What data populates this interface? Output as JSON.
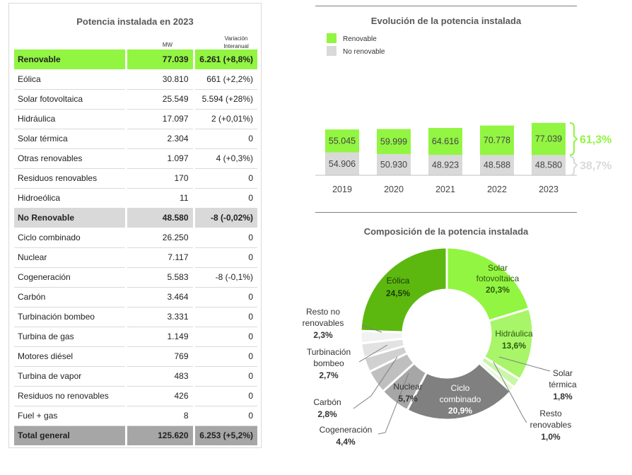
{
  "table": {
    "title": "Potencia instalada en 2023",
    "col_mw": "MW",
    "col_var_line1": "Variación",
    "col_var_line2": "Interanual",
    "rows": [
      {
        "name": "Renovable",
        "mw": "77.039",
        "var": "6.261 (+8,8%)",
        "kind": "renew"
      },
      {
        "name": "Eólica",
        "mw": "30.810",
        "var": "661 (+2,2%)",
        "kind": "item"
      },
      {
        "name": "Solar fotovoltaica",
        "mw": "25.549",
        "var": "5.594 (+28%)",
        "kind": "item"
      },
      {
        "name": "Hidráulica",
        "mw": "17.097",
        "var": "2 (+0,01%)",
        "kind": "item"
      },
      {
        "name": "Solar térmica",
        "mw": "2.304",
        "var": "0",
        "kind": "item"
      },
      {
        "name": "Otras renovables",
        "mw": "1.097",
        "var": "4 (+0,3%)",
        "kind": "item"
      },
      {
        "name": "Residuos renovables",
        "mw": "170",
        "var": "0",
        "kind": "item"
      },
      {
        "name": "Hidroeólica",
        "mw": "11",
        "var": "0",
        "kind": "item"
      },
      {
        "name": "No Renovable",
        "mw": "48.580",
        "var": "-8 (-0,02%)",
        "kind": "nonrenew"
      },
      {
        "name": "Ciclo combinado",
        "mw": "26.250",
        "var": "0",
        "kind": "item"
      },
      {
        "name": "Nuclear",
        "mw": "7.117",
        "var": "0",
        "kind": "item"
      },
      {
        "name": "Cogeneración",
        "mw": "5.583",
        "var": "-8 (-0,1%)",
        "kind": "item"
      },
      {
        "name": "Carbón",
        "mw": "3.464",
        "var": "0",
        "kind": "item"
      },
      {
        "name": "Turbinación bombeo",
        "mw": "3.331",
        "var": "0",
        "kind": "item"
      },
      {
        "name": "Turbina de gas",
        "mw": "1.149",
        "var": "0",
        "kind": "item"
      },
      {
        "name": "Motores diésel",
        "mw": "769",
        "var": "0",
        "kind": "item"
      },
      {
        "name": "Turbina de vapor",
        "mw": "483",
        "var": "0",
        "kind": "item"
      },
      {
        "name": "Residuos no renovables",
        "mw": "426",
        "var": "0",
        "kind": "item"
      },
      {
        "name": "Fuel + gas",
        "mw": "8",
        "var": "0",
        "kind": "item"
      },
      {
        "name": "Total general",
        "mw": "125.620",
        "var": "6.253 (+5,2%)",
        "kind": "total"
      }
    ]
  },
  "chart_data": [
    {
      "type": "bar",
      "title": "Evolución de la potencia instalada",
      "stacked": true,
      "categories": [
        "2019",
        "2020",
        "2021",
        "2022",
        "2023"
      ],
      "series": [
        {
          "name": "No renovable",
          "color": "#d9d9d9",
          "values": [
            54906,
            50930,
            48923,
            48588,
            48580
          ],
          "labels": [
            "54.906",
            "50.930",
            "48.923",
            "48.588",
            "48.580"
          ]
        },
        {
          "name": "Renovable",
          "color": "#92f542",
          "values": [
            55045,
            59999,
            64616,
            70778,
            77039
          ],
          "labels": [
            "55.045",
            "59.999",
            "64.616",
            "70.778",
            "77.039"
          ]
        }
      ],
      "legend_position": "top-left",
      "grid": false,
      "annotations": [
        {
          "text": "61,3%",
          "series": "Renovable",
          "color": "#92f542"
        },
        {
          "text": "38,7%",
          "series": "No renovable",
          "color": "#d9d9d9"
        }
      ]
    },
    {
      "type": "pie",
      "donut": true,
      "title": "Composición de la potencia instalada",
      "slices": [
        {
          "name": "Solar fotovoltaica",
          "value": 20.3,
          "label": "20,3%",
          "color": "#92f542"
        },
        {
          "name": "Hidráulica",
          "value": 13.6,
          "label": "13,6%",
          "color": "#a8f56a"
        },
        {
          "name": "Solar térmica",
          "value": 1.8,
          "label": "1,8%",
          "color": "#c9f7a6"
        },
        {
          "name": "Resto renovables",
          "value": 1.0,
          "label": "1,0%",
          "color": "#e3fad2"
        },
        {
          "name": "Ciclo combinado",
          "value": 20.9,
          "label": "20,9%",
          "color": "#808080"
        },
        {
          "name": "Nuclear",
          "value": 5.7,
          "label": "5,7%",
          "color": "#a6a6a6"
        },
        {
          "name": "Cogeneración",
          "value": 4.4,
          "label": "4,4%",
          "color": "#bfbfbf"
        },
        {
          "name": "Carbón",
          "value": 2.8,
          "label": "2,8%",
          "color": "#d0d0d0"
        },
        {
          "name": "Turbinación bombeo",
          "value": 2.7,
          "label": "2,7%",
          "color": "#e2e2e2"
        },
        {
          "name": "Resto no renovables",
          "value": 2.3,
          "label": "2,3%",
          "color": "#f2f2f2"
        },
        {
          "name": "Eólica",
          "value": 24.5,
          "label": "24,5%",
          "color": "#5cb80f"
        }
      ],
      "labels": {
        "solar_fv_1": "Solar",
        "solar_fv_2": "fotovoltaica",
        "hidraulica": "Hidráulica",
        "solar_term_1": "Solar",
        "solar_term_2": "térmica",
        "resto_ren_1": "Resto",
        "resto_ren_2": "renovables",
        "ciclo_1": "Ciclo",
        "ciclo_2": "combinado",
        "nuclear": "Nuclear",
        "cogen": "Cogeneración",
        "carbon": "Carbón",
        "turb_1": "Turbinación",
        "turb_2": "bombeo",
        "resto_no_1": "Resto no",
        "resto_no_2": "renovables",
        "eolica": "Eólica"
      }
    }
  ]
}
